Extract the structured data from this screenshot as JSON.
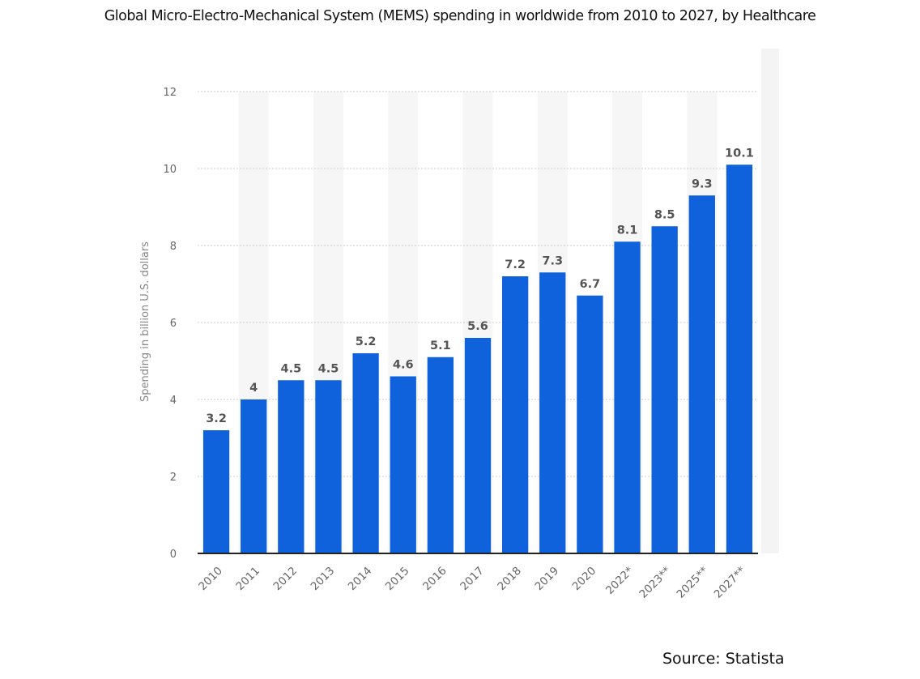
{
  "chart_data": {
    "type": "bar",
    "title": "Global Micro-Electro-Mechanical System (MEMS) spending in worldwide from 2010 to 2027, by Healthcare",
    "xlabel": "",
    "ylabel": "Spending in billion U.S. dollars",
    "categories": [
      "2010",
      "2011",
      "2012",
      "2013",
      "2014",
      "2015",
      "2016",
      "2017",
      "2018",
      "2019",
      "2020",
      "2022*",
      "2023**",
      "2025**",
      "2027**"
    ],
    "values": [
      3.2,
      4,
      4.5,
      4.5,
      5.2,
      4.6,
      5.1,
      5.6,
      7.2,
      7.3,
      6.7,
      8.1,
      8.5,
      9.3,
      10.1
    ],
    "data_labels": [
      "3.2",
      "4",
      "4.5",
      "4.5",
      "5.2",
      "4.6",
      "5.1",
      "5.6",
      "7.2",
      "7.3",
      "6.7",
      "8.1",
      "8.5",
      "9.3",
      "10.1"
    ],
    "ylim": [
      0,
      12
    ],
    "yticks": [
      0,
      2,
      4,
      6,
      8,
      10,
      12
    ],
    "grid": true,
    "legend": "none",
    "colors": {
      "bar": "#0f62dc",
      "grid": "#cccccc",
      "column_shade": "#f6f6f6",
      "axis": "#222222"
    }
  },
  "source": "Source: Statista"
}
